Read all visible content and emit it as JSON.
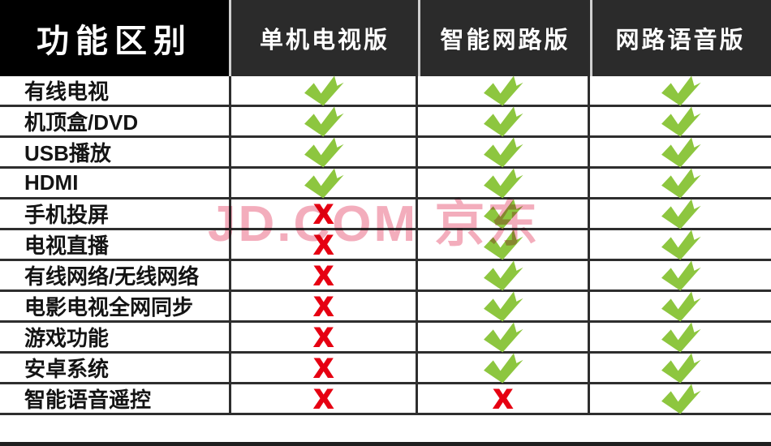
{
  "table": {
    "feature_col_title": "功能区别",
    "columns": [
      "单机电视版",
      "智能网路版",
      "网路语音版"
    ],
    "rows": [
      {
        "label": "有线电视",
        "values": [
          "check",
          "check",
          "check"
        ]
      },
      {
        "label": "机顶盒/DVD",
        "values": [
          "check",
          "check",
          "check"
        ]
      },
      {
        "label": "USB播放",
        "values": [
          "check",
          "check",
          "check"
        ]
      },
      {
        "label": "HDMI",
        "values": [
          "check",
          "check",
          "check"
        ]
      },
      {
        "label": "手机投屏",
        "values": [
          "cross",
          "check",
          "check"
        ]
      },
      {
        "label": "电视直播",
        "values": [
          "cross",
          "check",
          "check"
        ]
      },
      {
        "label": "有线网络/无线网络",
        "values": [
          "cross",
          "check",
          "check"
        ]
      },
      {
        "label": "电影电视全网同步",
        "values": [
          "cross",
          "check",
          "check"
        ]
      },
      {
        "label": "游戏功能",
        "values": [
          "cross",
          "check",
          "check"
        ]
      },
      {
        "label": "安卓系统",
        "values": [
          "cross",
          "check",
          "check"
        ]
      },
      {
        "label": "智能语音遥控",
        "values": [
          "cross",
          "cross",
          "check"
        ]
      }
    ]
  },
  "watermark": "JD.COM 京东",
  "icons": {
    "check_icon_name": "check-icon",
    "cross_icon_name": "cross-icon",
    "cross_glyph": "X"
  },
  "colors": {
    "check_green": "#8DC63F",
    "cross_red": "#E60012",
    "watermark_pink": "#F2A6B6",
    "header_left_bg": "#000000",
    "header_bg": "#2B2B2B",
    "grid_line": "#2E2E2E",
    "header_divider": "#CFCFCF",
    "bottom_bar": "#1F1F1F"
  },
  "chart_data": {
    "type": "table",
    "title": "功能区别",
    "columns": [
      "功能区别",
      "单机电视版",
      "智能网路版",
      "网路语音版"
    ],
    "rows": [
      [
        "有线电视",
        "yes",
        "yes",
        "yes"
      ],
      [
        "机顶盒/DVD",
        "yes",
        "yes",
        "yes"
      ],
      [
        "USB播放",
        "yes",
        "yes",
        "yes"
      ],
      [
        "HDMI",
        "yes",
        "yes",
        "yes"
      ],
      [
        "手机投屏",
        "no",
        "yes",
        "yes"
      ],
      [
        "电视直播",
        "no",
        "yes",
        "yes"
      ],
      [
        "有线网络/无线网络",
        "no",
        "yes",
        "yes"
      ],
      [
        "电影电视全网同步",
        "no",
        "yes",
        "yes"
      ],
      [
        "游戏功能",
        "no",
        "yes",
        "yes"
      ],
      [
        "安卓系统",
        "no",
        "yes",
        "yes"
      ],
      [
        "智能语音遥控",
        "no",
        "no",
        "yes"
      ]
    ],
    "legend": {
      "check": "feature supported (green check)",
      "cross": "feature not supported (red X)"
    },
    "watermark_text": "JD.COM 京东"
  }
}
